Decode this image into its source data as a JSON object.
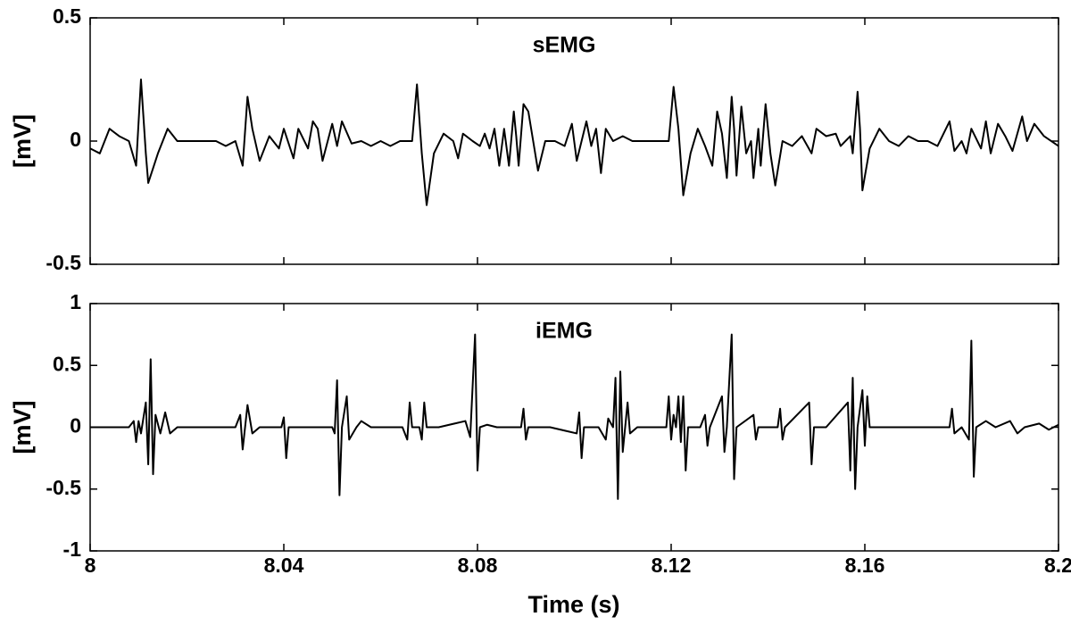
{
  "chart_data": [
    {
      "type": "line",
      "title": "sEMG",
      "ylabel": "[mV]",
      "color": "#000000",
      "xlim": [
        8,
        8.2
      ],
      "ylim": [
        -0.5,
        0.5
      ],
      "yticks": [
        -0.5,
        0,
        0.5
      ],
      "x": [
        8.0,
        8.002,
        8.004,
        8.006,
        8.008,
        8.0095,
        8.0105,
        8.0115,
        8.012,
        8.014,
        8.016,
        8.018,
        8.022,
        8.026,
        8.028,
        8.03,
        8.0315,
        8.0325,
        8.0335,
        8.035,
        8.037,
        8.039,
        8.04,
        8.042,
        8.043,
        8.045,
        8.046,
        8.047,
        8.048,
        8.05,
        8.051,
        8.052,
        8.054,
        8.056,
        8.058,
        8.06,
        8.062,
        8.064,
        8.0665,
        8.0675,
        8.0685,
        8.0695,
        8.071,
        8.073,
        8.075,
        8.076,
        8.077,
        8.079,
        8.0805,
        8.0815,
        8.0825,
        8.0835,
        8.0845,
        8.0855,
        8.0865,
        8.0875,
        8.088,
        8.0885,
        8.0895,
        8.0905,
        8.0915,
        8.0925,
        8.094,
        8.096,
        8.098,
        8.0995,
        8.1005,
        8.1025,
        8.1035,
        8.1045,
        8.1055,
        8.1065,
        8.108,
        8.11,
        8.112,
        8.114,
        8.116,
        8.118,
        8.1195,
        8.1205,
        8.1215,
        8.1225,
        8.124,
        8.1255,
        8.127,
        8.1285,
        8.1295,
        8.1305,
        8.1315,
        8.1325,
        8.133,
        8.1335,
        8.1345,
        8.1355,
        8.1365,
        8.137,
        8.138,
        8.1385,
        8.1395,
        8.1405,
        8.1415,
        8.143,
        8.145,
        8.147,
        8.149,
        8.15,
        8.152,
        8.154,
        8.155,
        8.157,
        8.1575,
        8.1585,
        8.159,
        8.1595,
        8.161,
        8.163,
        8.165,
        8.167,
        8.169,
        8.171,
        8.173,
        8.175,
        8.1775,
        8.1785,
        8.18,
        8.181,
        8.182,
        8.184,
        8.185,
        8.186,
        8.1875,
        8.189,
        8.1905,
        8.1925,
        8.1935,
        8.195,
        8.197,
        8.2
      ],
      "values": [
        -0.03,
        -0.05,
        0.05,
        0.02,
        0.0,
        -0.1,
        0.25,
        -0.05,
        -0.17,
        -0.05,
        0.05,
        0.0,
        0.0,
        0.0,
        -0.02,
        0.0,
        -0.1,
        0.18,
        0.05,
        -0.08,
        0.02,
        -0.03,
        0.05,
        -0.07,
        0.05,
        -0.03,
        0.08,
        0.05,
        -0.08,
        0.07,
        -0.02,
        0.08,
        -0.01,
        0.0,
        -0.02,
        0.0,
        -0.02,
        0.0,
        0.0,
        0.23,
        -0.05,
        -0.26,
        -0.05,
        0.03,
        0.0,
        -0.07,
        0.03,
        0.0,
        -0.02,
        0.03,
        -0.03,
        0.05,
        -0.1,
        0.05,
        -0.1,
        0.12,
        0.02,
        -0.1,
        0.15,
        0.12,
        0.0,
        -0.12,
        0.0,
        0.0,
        -0.02,
        0.07,
        -0.08,
        0.08,
        -0.02,
        0.05,
        -0.13,
        0.05,
        0.0,
        0.02,
        0.0,
        0.0,
        0.0,
        0.0,
        0.0,
        0.22,
        0.05,
        -0.22,
        -0.05,
        0.05,
        -0.02,
        -0.1,
        0.12,
        0.03,
        -0.15,
        0.18,
        0.05,
        -0.14,
        0.14,
        -0.05,
        0.0,
        -0.15,
        0.05,
        -0.1,
        0.15,
        -0.05,
        -0.18,
        0.0,
        -0.02,
        0.02,
        -0.05,
        0.05,
        0.02,
        0.03,
        -0.02,
        0.02,
        -0.05,
        0.2,
        0.05,
        -0.2,
        -0.03,
        0.05,
        0.0,
        -0.02,
        0.02,
        0.0,
        0.0,
        -0.02,
        0.08,
        -0.04,
        0.0,
        -0.05,
        0.05,
        -0.03,
        0.08,
        -0.05,
        0.07,
        0.02,
        -0.04,
        0.1,
        0.0,
        0.07,
        0.02,
        -0.02
      ]
    },
    {
      "type": "line",
      "title": "iEMG",
      "ylabel": "[mV]",
      "xlabel": "Time (s)",
      "color": "#000000",
      "xlim": [
        8,
        8.2
      ],
      "xticks": [
        8,
        8.04,
        8.08,
        8.12,
        8.16,
        8.2
      ],
      "ylim": [
        -1,
        1
      ],
      "yticks": [
        -1,
        -0.5,
        0,
        0.5,
        1
      ],
      "x": [
        8.0,
        8.008,
        8.009,
        8.0095,
        8.01,
        8.0105,
        8.0115,
        8.012,
        8.0125,
        8.013,
        8.0135,
        8.0145,
        8.0155,
        8.0165,
        8.018,
        8.03,
        8.031,
        8.0315,
        8.0325,
        8.0335,
        8.035,
        8.0395,
        8.04,
        8.0405,
        8.041,
        8.05,
        8.0505,
        8.051,
        8.0515,
        8.052,
        8.053,
        8.0535,
        8.055,
        8.056,
        8.058,
        8.0645,
        8.0655,
        8.066,
        8.0665,
        8.068,
        8.0685,
        8.069,
        8.0695,
        8.072,
        8.0775,
        8.0785,
        8.0795,
        8.08,
        8.0805,
        8.082,
        8.084,
        8.089,
        8.0895,
        8.09,
        8.0905,
        8.095,
        8.1005,
        8.101,
        8.1015,
        8.102,
        8.105,
        8.1065,
        8.107,
        8.108,
        8.1085,
        8.109,
        8.1095,
        8.11,
        8.111,
        8.1115,
        8.113,
        8.119,
        8.1195,
        8.12,
        8.1205,
        8.121,
        8.1215,
        8.122,
        8.1225,
        8.123,
        8.1235,
        8.126,
        8.127,
        8.1275,
        8.128,
        8.1305,
        8.131,
        8.1315,
        8.1325,
        8.133,
        8.1335,
        8.137,
        8.1375,
        8.138,
        8.142,
        8.1425,
        8.143,
        8.1435,
        8.1485,
        8.149,
        8.1495,
        8.152,
        8.1565,
        8.157,
        8.1575,
        8.158,
        8.1585,
        8.1595,
        8.16,
        8.1605,
        8.161,
        8.164,
        8.175,
        8.1775,
        8.178,
        8.1785,
        8.18,
        8.1815,
        8.182,
        8.1825,
        8.183,
        8.185,
        8.187,
        8.19,
        8.1915,
        8.193,
        8.196,
        8.198,
        8.2
      ],
      "values": [
        0,
        0,
        0.05,
        -0.12,
        0.05,
        -0.05,
        0.2,
        -0.3,
        0.55,
        -0.38,
        0.1,
        -0.05,
        0.12,
        -0.05,
        0.0,
        0.0,
        0.1,
        -0.18,
        0.18,
        -0.05,
        0.0,
        0.0,
        0.08,
        -0.25,
        0.0,
        0.0,
        -0.05,
        0.38,
        -0.55,
        0.0,
        0.25,
        -0.1,
        0.0,
        0.05,
        0.0,
        0.0,
        -0.1,
        0.2,
        0.0,
        0.0,
        -0.1,
        0.2,
        0.0,
        0.0,
        0.05,
        -0.08,
        0.75,
        -0.35,
        0.0,
        0.02,
        0.0,
        0.0,
        0.15,
        -0.1,
        0.0,
        0.0,
        -0.05,
        0.12,
        -0.25,
        0.0,
        0.0,
        -0.1,
        0.07,
        0.0,
        0.4,
        -0.58,
        0.45,
        -0.2,
        0.2,
        -0.05,
        0.0,
        0.0,
        0.25,
        -0.1,
        0.1,
        0.0,
        0.25,
        -0.12,
        0.25,
        -0.35,
        0.0,
        0.0,
        0.1,
        -0.15,
        0.0,
        0.25,
        -0.2,
        0.0,
        0.75,
        -0.42,
        0.0,
        0.1,
        -0.1,
        0.0,
        0.0,
        0.15,
        -0.1,
        0.0,
        0.2,
        -0.3,
        0.0,
        0.0,
        0.2,
        -0.35,
        0.4,
        -0.5,
        0.0,
        0.3,
        -0.15,
        0.25,
        0.0,
        0.0,
        0.0,
        0.0,
        0.15,
        -0.05,
        0.0,
        -0.1,
        0.7,
        -0.4,
        0.0,
        0.05,
        0.0,
        0.05,
        -0.05,
        0.0,
        0.03,
        -0.02,
        0.02
      ]
    }
  ]
}
